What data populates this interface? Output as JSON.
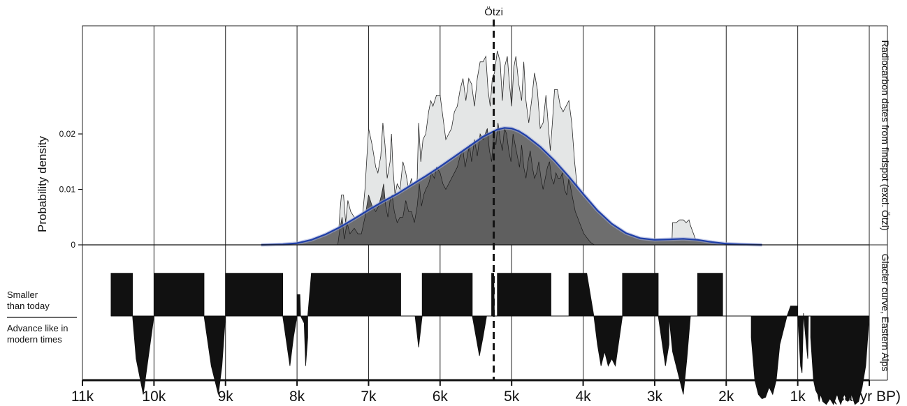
{
  "chart_data": [
    {
      "type": "area",
      "panel": "top",
      "ylabel": "Probability density",
      "right_label": "Radiocarbon dates from findspot (excl. Ötzi)",
      "x_unit_label": "(cal yr BP)",
      "x_ticks": [
        {
          "value": 11000,
          "label": "11k"
        },
        {
          "value": 10000,
          "label": "10k"
        },
        {
          "value": 9000,
          "label": "9k"
        },
        {
          "value": 8000,
          "label": "8k"
        },
        {
          "value": 7000,
          "label": "7k"
        },
        {
          "value": 6000,
          "label": "6k"
        },
        {
          "value": 5000,
          "label": "5k"
        },
        {
          "value": 4000,
          "label": "4k"
        },
        {
          "value": 3000,
          "label": "3k"
        },
        {
          "value": 2000,
          "label": "2k"
        },
        {
          "value": 1000,
          "label": "1k"
        }
      ],
      "xlim": [
        11000,
        0
      ],
      "x_reversed": true,
      "y_ticks": [
        {
          "value": 0,
          "label": "0"
        },
        {
          "value": 0.01,
          "label": "0.01"
        },
        {
          "value": 0.02,
          "label": "0.02"
        }
      ],
      "ylim": [
        0,
        0.0395
      ],
      "grid_vertical": true,
      "annotation": {
        "label": "Ötzi",
        "x": 5250
      },
      "series": [
        {
          "kind": "summed-probability",
          "color_fill": "#e4e6e6",
          "color_line": "#2a2a2a",
          "x": [
            7430,
            7400,
            7380,
            7350,
            7320,
            7290,
            7250,
            7200,
            7150,
            7100,
            7050,
            7000,
            6950,
            6900,
            6870,
            6830,
            6800,
            6770,
            6740,
            6700,
            6680,
            6660,
            6630,
            6600,
            6560,
            6520,
            6480,
            6440,
            6400,
            6360,
            6320,
            6300,
            6270,
            6240,
            6200,
            6160,
            6130,
            6100,
            6050,
            6000,
            5960,
            5920,
            5880,
            5840,
            5800,
            5760,
            5720,
            5680,
            5640,
            5600,
            5560,
            5520,
            5480,
            5440,
            5400,
            5360,
            5330,
            5300,
            5270,
            5240,
            5200,
            5160,
            5130,
            5100,
            5060,
            5030,
            5000,
            4970,
            4940,
            4900,
            4860,
            4830,
            4800,
            4760,
            4720,
            4680,
            4640,
            4600,
            4560,
            4520,
            4490,
            4460,
            4430,
            4400,
            4360,
            4320,
            4280,
            4240,
            4200,
            4160,
            4120,
            4080,
            4040,
            4000,
            3960,
            3920,
            3880,
            3840,
            2760,
            2750,
            2700,
            2650,
            2600,
            2560,
            2520,
            2500,
            2400
          ],
          "values": [
            0.0,
            0.006,
            0.009,
            0.009,
            0.004,
            0.008,
            0.006,
            0.005,
            0.004,
            0.003,
            0.01,
            0.021,
            0.018,
            0.014,
            0.013,
            0.016,
            0.022,
            0.018,
            0.012,
            0.015,
            0.02,
            0.014,
            0.009,
            0.011,
            0.01,
            0.015,
            0.013,
            0.01,
            0.012,
            0.007,
            0.012,
            0.022,
            0.015,
            0.019,
            0.02,
            0.024,
            0.026,
            0.025,
            0.027,
            0.027,
            0.023,
            0.019,
            0.02,
            0.021,
            0.024,
            0.025,
            0.028,
            0.03,
            0.026,
            0.03,
            0.029,
            0.025,
            0.03,
            0.033,
            0.033,
            0.034,
            0.028,
            0.025,
            0.03,
            0.031,
            0.035,
            0.033,
            0.026,
            0.032,
            0.034,
            0.029,
            0.025,
            0.032,
            0.034,
            0.029,
            0.026,
            0.033,
            0.026,
            0.022,
            0.026,
            0.031,
            0.028,
            0.021,
            0.022,
            0.027,
            0.022,
            0.017,
            0.022,
            0.028,
            0.028,
            0.025,
            0.024,
            0.025,
            0.026,
            0.022,
            0.015,
            0.01,
            0.008,
            0.005,
            0.003,
            0.002,
            0.001,
            0.0,
            0.0,
            0.004,
            0.004,
            0.0045,
            0.0045,
            0.004,
            0.0045,
            0.0035,
            0.0
          ]
        },
        {
          "kind": "site-trace",
          "color_line": "#1a1a1a",
          "x": [
            7430,
            7400,
            7370,
            7340,
            7300,
            7260,
            7200,
            7150,
            7100,
            7050,
            7000,
            6950,
            6900,
            6860,
            6820,
            6790,
            6760,
            6730,
            6700,
            6670,
            6640,
            6600,
            6560,
            6520,
            6480,
            6440,
            6400,
            6360,
            6320,
            6290,
            6260,
            6230,
            6200,
            6160,
            6120,
            6080,
            6050,
            6000,
            5960,
            5920,
            5880,
            5840,
            5800,
            5760,
            5720,
            5680,
            5650,
            5620,
            5590,
            5560,
            5520,
            5480,
            5440,
            5400,
            5370,
            5340,
            5310,
            5280,
            5250,
            5220,
            5190,
            5160,
            5130,
            5100,
            5070,
            5040,
            5010,
            4980,
            4950,
            4920,
            4890,
            4860,
            4830,
            4800,
            4770,
            4740,
            4710,
            4680,
            4650,
            4620,
            4590,
            4560,
            4530,
            4500,
            4470,
            4440,
            4410,
            4380,
            4350,
            4320,
            4290,
            4260,
            4230,
            4200,
            4170,
            4140,
            4110,
            4080,
            4050,
            4020,
            3990,
            3960,
            3930,
            3900,
            3870,
            3840
          ],
          "values": [
            0.0,
            0.003,
            0.005,
            0.001,
            0.004,
            0.002,
            0.003,
            0.002,
            0.002,
            0.005,
            0.009,
            0.007,
            0.006,
            0.007,
            0.009,
            0.011,
            0.007,
            0.005,
            0.008,
            0.009,
            0.006,
            0.004,
            0.005,
            0.005,
            0.008,
            0.006,
            0.006,
            0.004,
            0.007,
            0.011,
            0.007,
            0.009,
            0.01,
            0.011,
            0.013,
            0.012,
            0.014,
            0.013,
            0.011,
            0.01,
            0.011,
            0.012,
            0.013,
            0.014,
            0.016,
            0.017,
            0.014,
            0.016,
            0.018,
            0.015,
            0.019,
            0.016,
            0.02,
            0.019,
            0.02,
            0.021,
            0.017,
            0.015,
            0.02,
            0.018,
            0.022,
            0.019,
            0.017,
            0.021,
            0.02,
            0.017,
            0.015,
            0.02,
            0.018,
            0.016,
            0.014,
            0.018,
            0.014,
            0.012,
            0.015,
            0.017,
            0.014,
            0.012,
            0.013,
            0.015,
            0.012,
            0.01,
            0.012,
            0.014,
            0.015,
            0.012,
            0.011,
            0.013,
            0.012,
            0.012,
            0.013,
            0.01,
            0.009,
            0.012,
            0.01,
            0.008,
            0.006,
            0.005,
            0.004,
            0.003,
            0.002,
            0.0015,
            0.001,
            0.0005,
            0.0002,
            0.0
          ]
        },
        {
          "kind": "modelled-density",
          "color_line": "#1f3fa8",
          "x": [
            8500,
            8200,
            8000,
            7800,
            7600,
            7400,
            7200,
            7000,
            6800,
            6600,
            6400,
            6200,
            6000,
            5800,
            5600,
            5400,
            5200,
            5100,
            5000,
            4900,
            4800,
            4600,
            4400,
            4200,
            4000,
            3800,
            3600,
            3400,
            3200,
            3000,
            2800,
            2600,
            2400,
            2200,
            2000,
            1800,
            1500
          ],
          "values": [
            0.0,
            0.0001,
            0.0003,
            0.0009,
            0.0019,
            0.0032,
            0.0047,
            0.0063,
            0.0078,
            0.0092,
            0.0108,
            0.0124,
            0.0141,
            0.0159,
            0.0177,
            0.0195,
            0.0208,
            0.0211,
            0.021,
            0.0205,
            0.0197,
            0.0177,
            0.0152,
            0.0123,
            0.0092,
            0.0062,
            0.0038,
            0.0021,
            0.0012,
            0.0009,
            0.001,
            0.0011,
            0.0009,
            0.0005,
            0.0002,
            0.0001,
            0.0
          ]
        }
      ]
    },
    {
      "type": "area",
      "panel": "bottom",
      "right_label": "Glacier curve, Eastern Alps",
      "legend_upper": [
        "Smaller",
        "than today"
      ],
      "legend_lower": [
        "Advance like in",
        "modern times"
      ],
      "note": "values are relative glacier extent: positive = smaller than today, negative = advance like in modern times",
      "ylim": [
        -1.05,
        0.45
      ],
      "series": [
        {
          "name": "",
          "x": [
            10600,
            10600,
            10300,
            10300,
            10250,
            10150,
            10000,
            10000,
            9950,
            9300,
            9300,
            9200,
            9100,
            9050,
            9000,
            9000,
            8950,
            8200,
            8200,
            8100,
            8050,
            8000,
            8000,
            7960,
            7950,
            7900,
            7880,
            7850,
            7850,
            7800,
            6550,
            6550,
            6350,
            6300,
            6250,
            6250,
            5550,
            5550,
            5450,
            5400,
            5350,
            5280,
            5280,
            5250,
            5240,
            5200,
            5200,
            5150,
            4450,
            4450,
            4200,
            4200,
            3950,
            3850,
            3800,
            3750,
            3700,
            3650,
            3600,
            3550,
            3450,
            3450,
            2950,
            2950,
            2850,
            2800,
            2800,
            2750,
            2600,
            2550,
            2500,
            2400,
            2400,
            2050,
            2050,
            1650,
            1650,
            1600,
            1550,
            1500,
            1450,
            1400,
            1350,
            1300,
            1250,
            1150,
            1100,
            1000,
            1000,
            960,
            940,
            920,
            920,
            880,
            860,
            850,
            820,
            820,
            780,
            750,
            720,
            700,
            680,
            650,
            600,
            550,
            500,
            450,
            400,
            350,
            300,
            250,
            200,
            150,
            100,
            50,
            0
          ],
          "values": [
            0.0,
            0.3,
            0.3,
            0.0,
            -0.3,
            -0.55,
            0.0,
            0.3,
            0.3,
            0.3,
            0.0,
            -0.35,
            -0.55,
            -0.35,
            0.0,
            0.3,
            0.3,
            0.3,
            0.0,
            -0.35,
            -0.15,
            0.0,
            0.15,
            0.15,
            0.0,
            -0.05,
            -0.35,
            -0.15,
            0.0,
            0.3,
            0.3,
            0.0,
            0.0,
            -0.22,
            0.0,
            0.3,
            0.3,
            0.0,
            -0.28,
            -0.15,
            0.0,
            0.0,
            0.3,
            0.3,
            0.0,
            0.0,
            0.3,
            0.3,
            0.3,
            0.0,
            0.0,
            0.3,
            0.3,
            0.0,
            -0.2,
            -0.35,
            -0.25,
            -0.35,
            -0.3,
            -0.35,
            0.0,
            0.3,
            0.3,
            0.0,
            -0.35,
            -0.2,
            0.0,
            -0.25,
            -0.55,
            -0.3,
            0.0,
            0.0,
            0.3,
            0.3,
            0.0,
            0.0,
            -0.15,
            -0.45,
            -0.55,
            -0.58,
            -0.57,
            -0.5,
            -0.55,
            -0.45,
            -0.2,
            0.0,
            0.07,
            0.07,
            0.0,
            -0.35,
            -0.4,
            0.0,
            0.02,
            -0.2,
            -0.3,
            0.0,
            0.0,
            -0.15,
            -0.45,
            -0.52,
            -0.55,
            -0.6,
            -0.55,
            -0.6,
            -0.62,
            -0.58,
            -0.62,
            -0.55,
            -0.62,
            -0.55,
            -0.6,
            -0.55,
            -0.62,
            -0.6,
            -0.5,
            -0.35,
            0.0
          ]
        }
      ]
    }
  ]
}
